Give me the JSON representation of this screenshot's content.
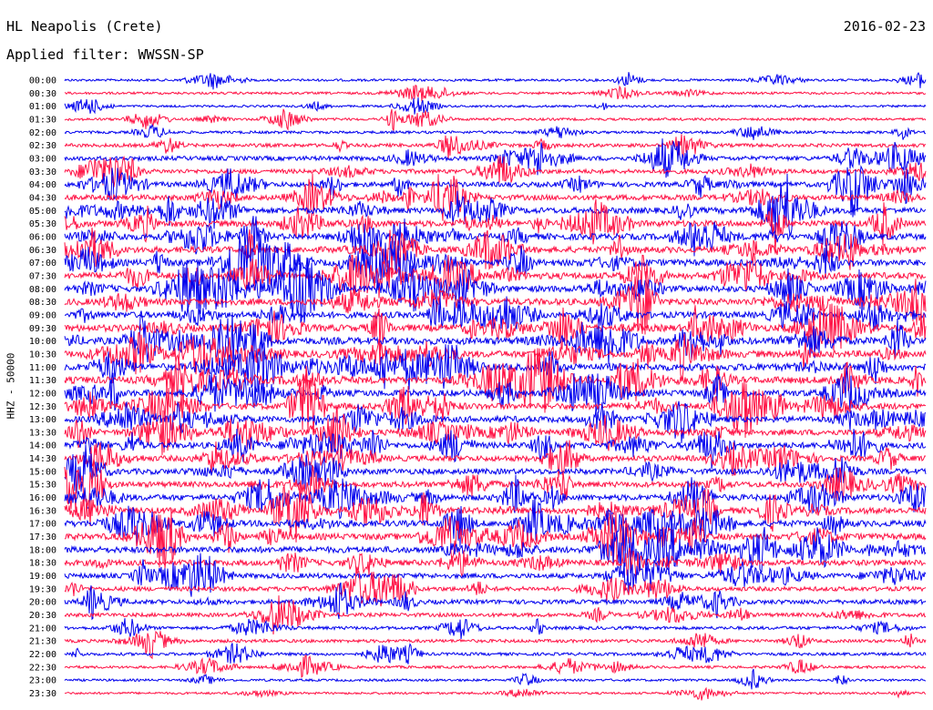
{
  "header": {
    "station": "HL Neapolis (Crete)",
    "date": "2016-02-23",
    "filter": "Applied filter: WWSSN-SP"
  },
  "channel_label": "HHZ - 50000",
  "colors": {
    "trace_a": "#0000ee",
    "trace_b": "#ff1144"
  },
  "chart_data": {
    "type": "line",
    "description_kind": "helicorder",
    "title": "HL Neapolis (Crete)",
    "date": "2016-02-23",
    "filter": "WWSSN-SP",
    "ylabel": "HHZ - 50000",
    "xlabel": "",
    "row_labels": [
      "00:00",
      "00:30",
      "01:00",
      "01:30",
      "02:00",
      "02:30",
      "03:00",
      "03:30",
      "04:00",
      "04:30",
      "05:00",
      "05:30",
      "06:00",
      "06:30",
      "07:00",
      "07:30",
      "08:00",
      "08:30",
      "09:00",
      "09:30",
      "10:00",
      "10:30",
      "11:00",
      "11:30",
      "12:00",
      "12:30",
      "13:00",
      "13:30",
      "14:00",
      "14:30",
      "15:00",
      "15:30",
      "16:00",
      "16:30",
      "17:00",
      "17:30",
      "18:00",
      "18:30",
      "19:00",
      "19:30",
      "20:00",
      "20:30",
      "21:00",
      "21:30",
      "22:00",
      "22:30",
      "23:00",
      "23:30"
    ],
    "row_colors": [
      "blue",
      "red",
      "blue",
      "red",
      "blue",
      "red",
      "blue",
      "red",
      "blue",
      "red",
      "blue",
      "red",
      "blue",
      "red",
      "blue",
      "red",
      "blue",
      "red",
      "blue",
      "red",
      "blue",
      "red",
      "blue",
      "red",
      "blue",
      "red",
      "blue",
      "red",
      "blue",
      "red",
      "blue",
      "red",
      "blue",
      "red",
      "blue",
      "red",
      "blue",
      "red",
      "blue",
      "red",
      "blue",
      "red",
      "blue",
      "red",
      "blue",
      "red",
      "blue",
      "red"
    ],
    "activity_level": [
      0.15,
      0.15,
      0.12,
      0.18,
      0.2,
      0.35,
      0.5,
      0.5,
      0.6,
      0.65,
      0.75,
      0.8,
      0.8,
      0.8,
      0.85,
      0.85,
      0.8,
      0.85,
      0.8,
      0.9,
      0.95,
      0.9,
      0.95,
      0.9,
      0.85,
      0.8,
      0.8,
      0.75,
      0.75,
      0.7,
      0.7,
      0.7,
      0.75,
      0.8,
      0.8,
      0.8,
      0.8,
      0.7,
      0.6,
      0.5,
      0.5,
      0.4,
      0.3,
      0.3,
      0.25,
      0.2,
      0.15,
      0.12
    ],
    "minutes_per_row": 30
  }
}
